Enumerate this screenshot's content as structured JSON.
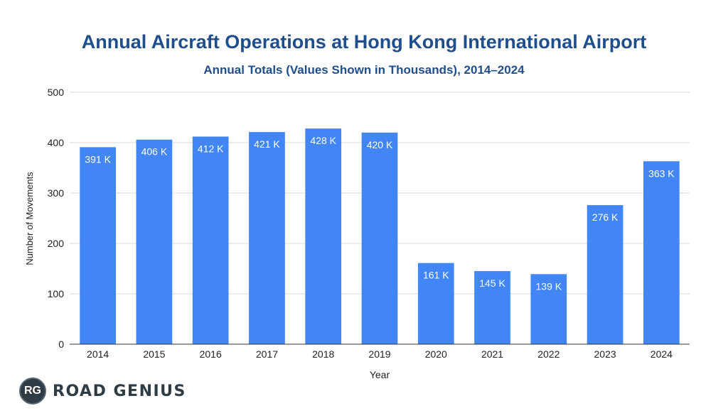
{
  "chart_data": {
    "type": "bar",
    "title": "Annual Aircraft Operations at Hong Kong International Airport",
    "subtitle": "Annual Totals (Values Shown in Thousands), 2014–2024",
    "xlabel": "Year",
    "ylabel": "Number of Movements",
    "ylim": [
      0,
      500
    ],
    "yticks": [
      0,
      100,
      200,
      300,
      400,
      500
    ],
    "grid": true,
    "categories": [
      "2014",
      "2015",
      "2016",
      "2017",
      "2018",
      "2019",
      "2020",
      "2021",
      "2022",
      "2023",
      "2024"
    ],
    "values": [
      391,
      406,
      412,
      421,
      428,
      420,
      161,
      145,
      139,
      276,
      363
    ],
    "data_labels": [
      "391 K",
      "406 K",
      "412 K",
      "421 K",
      "428 K",
      "420 K",
      "161 K",
      "145 K",
      "139 K",
      "276 K",
      "363 K"
    ],
    "bar_color": "#4285f4"
  },
  "branding": {
    "badge": "RG",
    "name": "ROAD GENIUS"
  }
}
